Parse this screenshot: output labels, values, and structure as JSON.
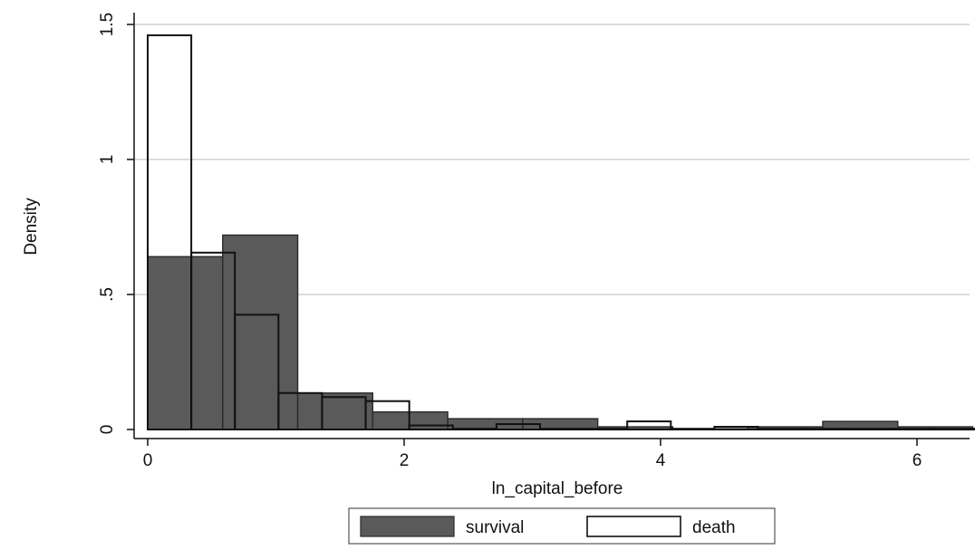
{
  "chart_data": {
    "type": "bar",
    "xlabel": "ln_capital_before",
    "ylabel": "Density",
    "xlim": [
      -0.1,
      6.5
    ],
    "ylim": [
      -0.05,
      1.55
    ],
    "x_ticks": [
      {
        "value": 0,
        "label": "0"
      },
      {
        "value": 2,
        "label": "2"
      },
      {
        "value": 4,
        "label": "4"
      },
      {
        "value": 6,
        "label": "6"
      }
    ],
    "y_ticks": [
      {
        "value": 0,
        "label": "0"
      },
      {
        "value": 0.5,
        "label": ".5"
      },
      {
        "value": 1,
        "label": "1"
      },
      {
        "value": 1.5,
        "label": "1.5"
      }
    ],
    "grid": true,
    "legend_position": "bottom",
    "series": [
      {
        "name": "survival",
        "fill": "#5a5a5a",
        "stroke": "#2a2a2a",
        "bins": [
          {
            "x0": 0.0,
            "x1": 0.585,
            "y": 0.64
          },
          {
            "x0": 0.585,
            "x1": 1.17,
            "y": 0.72
          },
          {
            "x0": 1.17,
            "x1": 1.755,
            "y": 0.135
          },
          {
            "x0": 1.755,
            "x1": 2.34,
            "y": 0.065
          },
          {
            "x0": 2.34,
            "x1": 2.925,
            "y": 0.04
          },
          {
            "x0": 2.925,
            "x1": 3.51,
            "y": 0.04
          },
          {
            "x0": 3.51,
            "x1": 4.095,
            "y": 0.01
          },
          {
            "x0": 4.095,
            "x1": 4.68,
            "y": 0.0
          },
          {
            "x0": 4.68,
            "x1": 5.265,
            "y": 0.01
          },
          {
            "x0": 5.265,
            "x1": 5.85,
            "y": 0.03
          },
          {
            "x0": 5.85,
            "x1": 6.435,
            "y": 0.01
          }
        ]
      },
      {
        "name": "death",
        "fill": "none",
        "stroke": "#111111",
        "bins": [
          {
            "x0": 0.0,
            "x1": 0.34,
            "y": 1.46
          },
          {
            "x0": 0.34,
            "x1": 0.68,
            "y": 0.655
          },
          {
            "x0": 0.68,
            "x1": 1.02,
            "y": 0.425
          },
          {
            "x0": 1.02,
            "x1": 1.36,
            "y": 0.135
          },
          {
            "x0": 1.36,
            "x1": 1.7,
            "y": 0.12
          },
          {
            "x0": 1.7,
            "x1": 2.04,
            "y": 0.105
          },
          {
            "x0": 2.04,
            "x1": 2.38,
            "y": 0.015
          },
          {
            "x0": 2.38,
            "x1": 2.72,
            "y": 0.0
          },
          {
            "x0": 2.72,
            "x1": 3.06,
            "y": 0.02
          },
          {
            "x0": 3.06,
            "x1": 3.4,
            "y": 0.0
          },
          {
            "x0": 3.4,
            "x1": 3.74,
            "y": 0.0
          },
          {
            "x0": 3.74,
            "x1": 4.08,
            "y": 0.03
          },
          {
            "x0": 4.08,
            "x1": 4.42,
            "y": 0.0
          },
          {
            "x0": 4.42,
            "x1": 4.76,
            "y": 0.01
          },
          {
            "x0": 4.76,
            "x1": 5.1,
            "y": 0.0
          },
          {
            "x0": 5.1,
            "x1": 5.44,
            "y": 0.0
          },
          {
            "x0": 5.44,
            "x1": 5.78,
            "y": 0.0
          },
          {
            "x0": 5.78,
            "x1": 6.12,
            "y": 0.0
          },
          {
            "x0": 6.12,
            "x1": 6.46,
            "y": 0.0
          }
        ]
      }
    ]
  }
}
